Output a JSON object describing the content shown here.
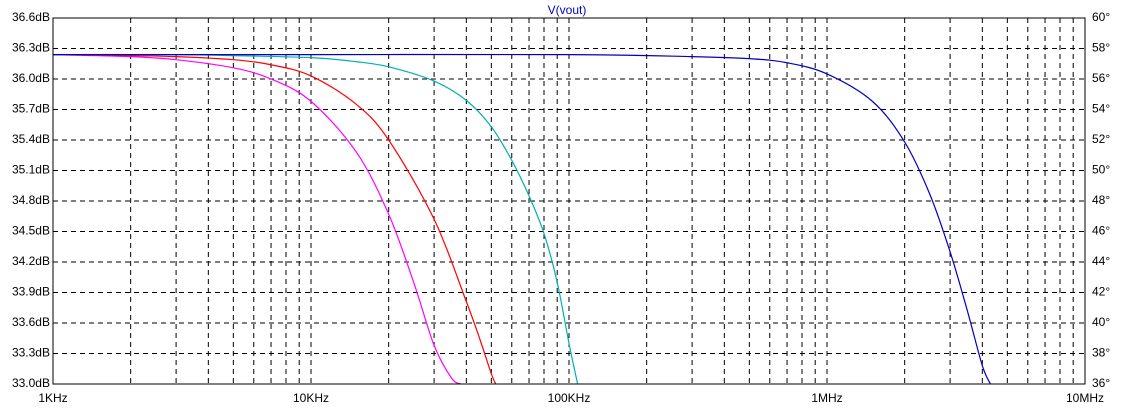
{
  "chart_data": {
    "type": "line",
    "title": "V(vout)",
    "x_scale": "log",
    "xlim": [
      1000,
      10000000
    ],
    "ylim": [
      33.0,
      36.6
    ],
    "y2lim": [
      36,
      60
    ],
    "x_major_ticks": [
      1000,
      10000,
      100000,
      1000000,
      10000000
    ],
    "x_tick_labels": [
      "1KHz",
      "10KHz",
      "100KHz",
      "1MHz",
      "10MHz"
    ],
    "y_ticks": [
      33.0,
      33.3,
      33.6,
      33.9,
      34.2,
      34.5,
      34.8,
      35.1,
      35.4,
      35.7,
      36.0,
      36.3,
      36.6
    ],
    "y_tick_labels": [
      "33.0dB",
      "33.3dB",
      "33.6dB",
      "33.9dB",
      "34.2dB",
      "34.5dB",
      "34.8dB",
      "35.1dB",
      "35.4dB",
      "35.7dB",
      "36.0dB",
      "36.3dB",
      "36.6dB"
    ],
    "y2_ticks": [
      36,
      38,
      40,
      42,
      44,
      46,
      48,
      50,
      52,
      54,
      56,
      58,
      60
    ],
    "y2_tick_labels": [
      "36°",
      "38°",
      "40°",
      "42°",
      "44°",
      "46°",
      "48°",
      "50°",
      "52°",
      "54°",
      "56°",
      "58°",
      "60°"
    ],
    "grid": true,
    "colors": {
      "title": "#0000c0",
      "grid": "#000000",
      "background": "#ffffff"
    },
    "series": [
      {
        "color": "#ff00ff",
        "x": [
          1000,
          2000,
          3000,
          5000,
          7000,
          10000,
          15000,
          20000,
          25000,
          30000,
          35000,
          38000
        ],
        "y": [
          36.24,
          36.22,
          36.19,
          36.11,
          36.0,
          35.78,
          35.28,
          34.67,
          34.0,
          33.38,
          33.06,
          33.0
        ]
      },
      {
        "color": "#ff0000",
        "x": [
          1000,
          2000,
          3000,
          5000,
          7000,
          10000,
          15000,
          20000,
          30000,
          40000,
          45000,
          50000,
          52000
        ],
        "y": [
          36.24,
          36.23,
          36.22,
          36.19,
          36.14,
          36.03,
          35.75,
          35.4,
          34.62,
          33.81,
          33.45,
          33.1,
          33.0
        ]
      },
      {
        "color": "#00b0b0",
        "x": [
          1000,
          3000,
          5000,
          10000,
          15000,
          20000,
          30000,
          40000,
          50000,
          60000,
          70000,
          80000,
          90000,
          100000,
          108000
        ],
        "y": [
          36.24,
          36.24,
          36.23,
          36.21,
          36.17,
          36.12,
          35.98,
          35.79,
          35.53,
          35.2,
          34.85,
          34.48,
          34.0,
          33.4,
          33.0
        ]
      },
      {
        "color": "#0000c0",
        "x": [
          1000,
          10000,
          100000,
          300000,
          500000,
          700000,
          1000000,
          1500000,
          2000000,
          2500000,
          3000000,
          3500000,
          4000000,
          4300000
        ],
        "y": [
          36.24,
          36.24,
          36.24,
          36.22,
          36.2,
          36.16,
          36.05,
          35.78,
          35.38,
          34.87,
          34.3,
          33.72,
          33.18,
          33.0
        ]
      }
    ]
  }
}
